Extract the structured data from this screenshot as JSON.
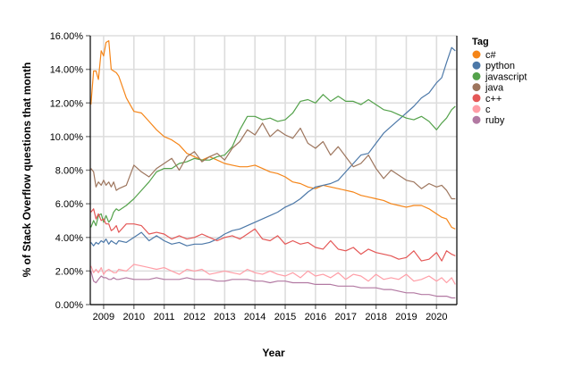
{
  "chart_data": {
    "type": "line",
    "title": "",
    "xlabel": "Year",
    "ylabel": "% of Stack Overflow questions that month",
    "xlim": [
      2008.56,
      2020.67
    ],
    "ylim": [
      0,
      16
    ],
    "x_ticks": [
      "2009",
      "2010",
      "2011",
      "2012",
      "2013",
      "2014",
      "2015",
      "2016",
      "2017",
      "2018",
      "2019",
      "2020"
    ],
    "y_ticks": [
      "0.00%",
      "2.00%",
      "4.00%",
      "6.00%",
      "8.00%",
      "10.00%",
      "12.00%",
      "14.00%",
      "16.00%"
    ],
    "grid": true,
    "legend": {
      "title": "Tag",
      "position": "right"
    },
    "x": [
      2008.58,
      2008.67,
      2008.75,
      2008.83,
      2008.92,
      2009.0,
      2009.08,
      2009.17,
      2009.25,
      2009.33,
      2009.42,
      2009.5,
      2009.75,
      2010.0,
      2010.25,
      2010.5,
      2010.75,
      2011.0,
      2011.25,
      2011.5,
      2011.75,
      2012.0,
      2012.25,
      2012.5,
      2012.75,
      2013.0,
      2013.25,
      2013.5,
      2013.75,
      2014.0,
      2014.25,
      2014.5,
      2014.75,
      2015.0,
      2015.25,
      2015.5,
      2015.75,
      2016.0,
      2016.25,
      2016.5,
      2016.75,
      2017.0,
      2017.25,
      2017.5,
      2017.75,
      2018.0,
      2018.25,
      2018.5,
      2018.75,
      2019.0,
      2019.25,
      2019.5,
      2019.75,
      2020.0,
      2020.17,
      2020.33,
      2020.5,
      2020.62
    ],
    "series": [
      {
        "name": "c#",
        "color": "#f58518",
        "values": [
          11.9,
          13.9,
          13.9,
          13.4,
          15.1,
          14.8,
          15.6,
          15.7,
          14.0,
          13.9,
          13.8,
          13.6,
          12.3,
          11.5,
          11.4,
          10.9,
          10.4,
          10.0,
          9.8,
          9.5,
          9.0,
          8.8,
          8.6,
          8.8,
          8.6,
          8.4,
          8.3,
          8.2,
          8.2,
          8.3,
          8.1,
          7.9,
          7.8,
          7.6,
          7.3,
          7.2,
          7.0,
          6.9,
          7.1,
          7.0,
          6.9,
          6.8,
          6.7,
          6.5,
          6.4,
          6.3,
          6.2,
          6.0,
          5.9,
          5.8,
          5.9,
          5.9,
          5.7,
          5.4,
          5.2,
          5.1,
          4.6,
          4.5
        ]
      },
      {
        "name": "python",
        "color": "#4c78a8",
        "values": [
          3.7,
          3.5,
          3.7,
          3.6,
          3.8,
          3.7,
          3.9,
          3.6,
          3.8,
          3.7,
          3.6,
          3.8,
          3.7,
          4.0,
          4.3,
          3.8,
          4.1,
          3.8,
          3.6,
          3.7,
          3.5,
          3.6,
          3.6,
          3.7,
          3.9,
          4.2,
          4.4,
          4.5,
          4.7,
          4.9,
          5.1,
          5.3,
          5.5,
          5.8,
          6.0,
          6.3,
          6.7,
          7.0,
          7.1,
          7.2,
          7.4,
          7.9,
          8.4,
          8.9,
          9.0,
          9.6,
          10.2,
          10.6,
          11.0,
          11.4,
          11.8,
          12.3,
          12.6,
          13.2,
          13.5,
          14.4,
          15.3,
          15.1
        ]
      },
      {
        "name": "javascript",
        "color": "#54a24b",
        "values": [
          4.6,
          5.0,
          4.7,
          5.3,
          5.4,
          4.9,
          5.3,
          4.9,
          5.1,
          5.5,
          5.7,
          5.6,
          5.9,
          6.3,
          6.8,
          7.3,
          7.9,
          8.1,
          8.1,
          8.4,
          8.5,
          8.7,
          8.6,
          8.6,
          8.8,
          8.9,
          9.4,
          10.4,
          11.2,
          11.2,
          11.0,
          11.1,
          10.9,
          11.0,
          11.4,
          12.1,
          12.2,
          12.0,
          12.5,
          12.1,
          12.4,
          12.1,
          12.1,
          11.9,
          12.2,
          11.9,
          11.6,
          11.5,
          11.3,
          11.1,
          11.0,
          11.2,
          10.9,
          10.4,
          10.8,
          11.1,
          11.6,
          11.8
        ]
      },
      {
        "name": "java",
        "color": "#9d755d",
        "values": [
          8.1,
          7.9,
          7.0,
          7.3,
          7.1,
          7.4,
          7.1,
          7.3,
          7.0,
          7.3,
          6.8,
          6.9,
          7.1,
          8.3,
          7.9,
          7.6,
          8.1,
          8.4,
          8.7,
          8.0,
          8.8,
          9.1,
          8.5,
          8.8,
          9.0,
          8.6,
          9.3,
          9.7,
          10.4,
          10.1,
          10.8,
          10.0,
          10.4,
          10.1,
          9.9,
          10.5,
          9.6,
          9.3,
          9.7,
          8.9,
          9.4,
          8.8,
          8.2,
          8.4,
          8.9,
          8.1,
          7.5,
          8.0,
          7.7,
          7.4,
          7.3,
          6.9,
          7.2,
          7.0,
          7.1,
          6.8,
          6.3,
          6.3
        ]
      },
      {
        "name": "c++",
        "color": "#e45756",
        "values": [
          5.5,
          5.7,
          5.1,
          5.4,
          5.0,
          5.1,
          4.8,
          4.8,
          4.4,
          4.5,
          4.7,
          4.3,
          4.8,
          4.8,
          4.7,
          4.2,
          4.3,
          4.2,
          3.9,
          4.1,
          3.9,
          4.0,
          4.2,
          4.0,
          3.8,
          4.0,
          4.1,
          3.9,
          4.2,
          4.5,
          3.9,
          3.8,
          4.1,
          3.6,
          3.8,
          3.6,
          3.7,
          3.4,
          3.3,
          3.8,
          3.3,
          3.2,
          3.4,
          3.0,
          3.3,
          3.1,
          3.0,
          2.9,
          2.7,
          2.8,
          3.2,
          2.6,
          2.7,
          3.1,
          2.6,
          3.2,
          3.0,
          2.9
        ]
      },
      {
        "name": "c",
        "color": "#ff9da6",
        "values": [
          2.3,
          1.9,
          2.1,
          1.9,
          2.2,
          1.8,
          2.0,
          2.1,
          2.0,
          1.9,
          1.9,
          2.1,
          2.0,
          2.4,
          2.3,
          2.2,
          2.1,
          2.2,
          2.0,
          1.8,
          2.1,
          2.0,
          2.1,
          1.8,
          1.9,
          2.0,
          1.9,
          1.8,
          2.1,
          1.9,
          1.8,
          2.0,
          1.8,
          1.7,
          1.9,
          1.6,
          2.0,
          1.7,
          1.8,
          1.6,
          1.9,
          1.5,
          1.8,
          1.7,
          1.4,
          1.8,
          1.5,
          1.6,
          1.5,
          1.8,
          1.4,
          1.5,
          1.7,
          1.4,
          1.6,
          1.3,
          1.6,
          1.2
        ]
      },
      {
        "name": "ruby",
        "color": "#b279a2",
        "values": [
          2.0,
          1.4,
          1.3,
          1.5,
          1.7,
          1.6,
          1.6,
          1.5,
          1.5,
          1.6,
          1.5,
          1.5,
          1.6,
          1.5,
          1.5,
          1.5,
          1.6,
          1.5,
          1.5,
          1.5,
          1.6,
          1.5,
          1.5,
          1.5,
          1.4,
          1.4,
          1.5,
          1.5,
          1.5,
          1.4,
          1.4,
          1.3,
          1.4,
          1.4,
          1.3,
          1.3,
          1.3,
          1.2,
          1.2,
          1.2,
          1.1,
          1.1,
          1.1,
          1.0,
          1.0,
          1.0,
          0.9,
          0.9,
          0.8,
          0.7,
          0.7,
          0.6,
          0.6,
          0.5,
          0.5,
          0.5,
          0.4,
          0.4
        ]
      }
    ]
  },
  "legend": {
    "title": "Tag",
    "items": [
      {
        "label": "c#",
        "color": "#f58518"
      },
      {
        "label": "python",
        "color": "#4c78a8"
      },
      {
        "label": "javascript",
        "color": "#54a24b"
      },
      {
        "label": "java",
        "color": "#9d755d"
      },
      {
        "label": "c++",
        "color": "#e45756"
      },
      {
        "label": "c",
        "color": "#ff9da6"
      },
      {
        "label": "ruby",
        "color": "#b279a2"
      }
    ]
  },
  "axes": {
    "x_title": "Year",
    "y_title": "% of Stack Overflow questions that month"
  }
}
